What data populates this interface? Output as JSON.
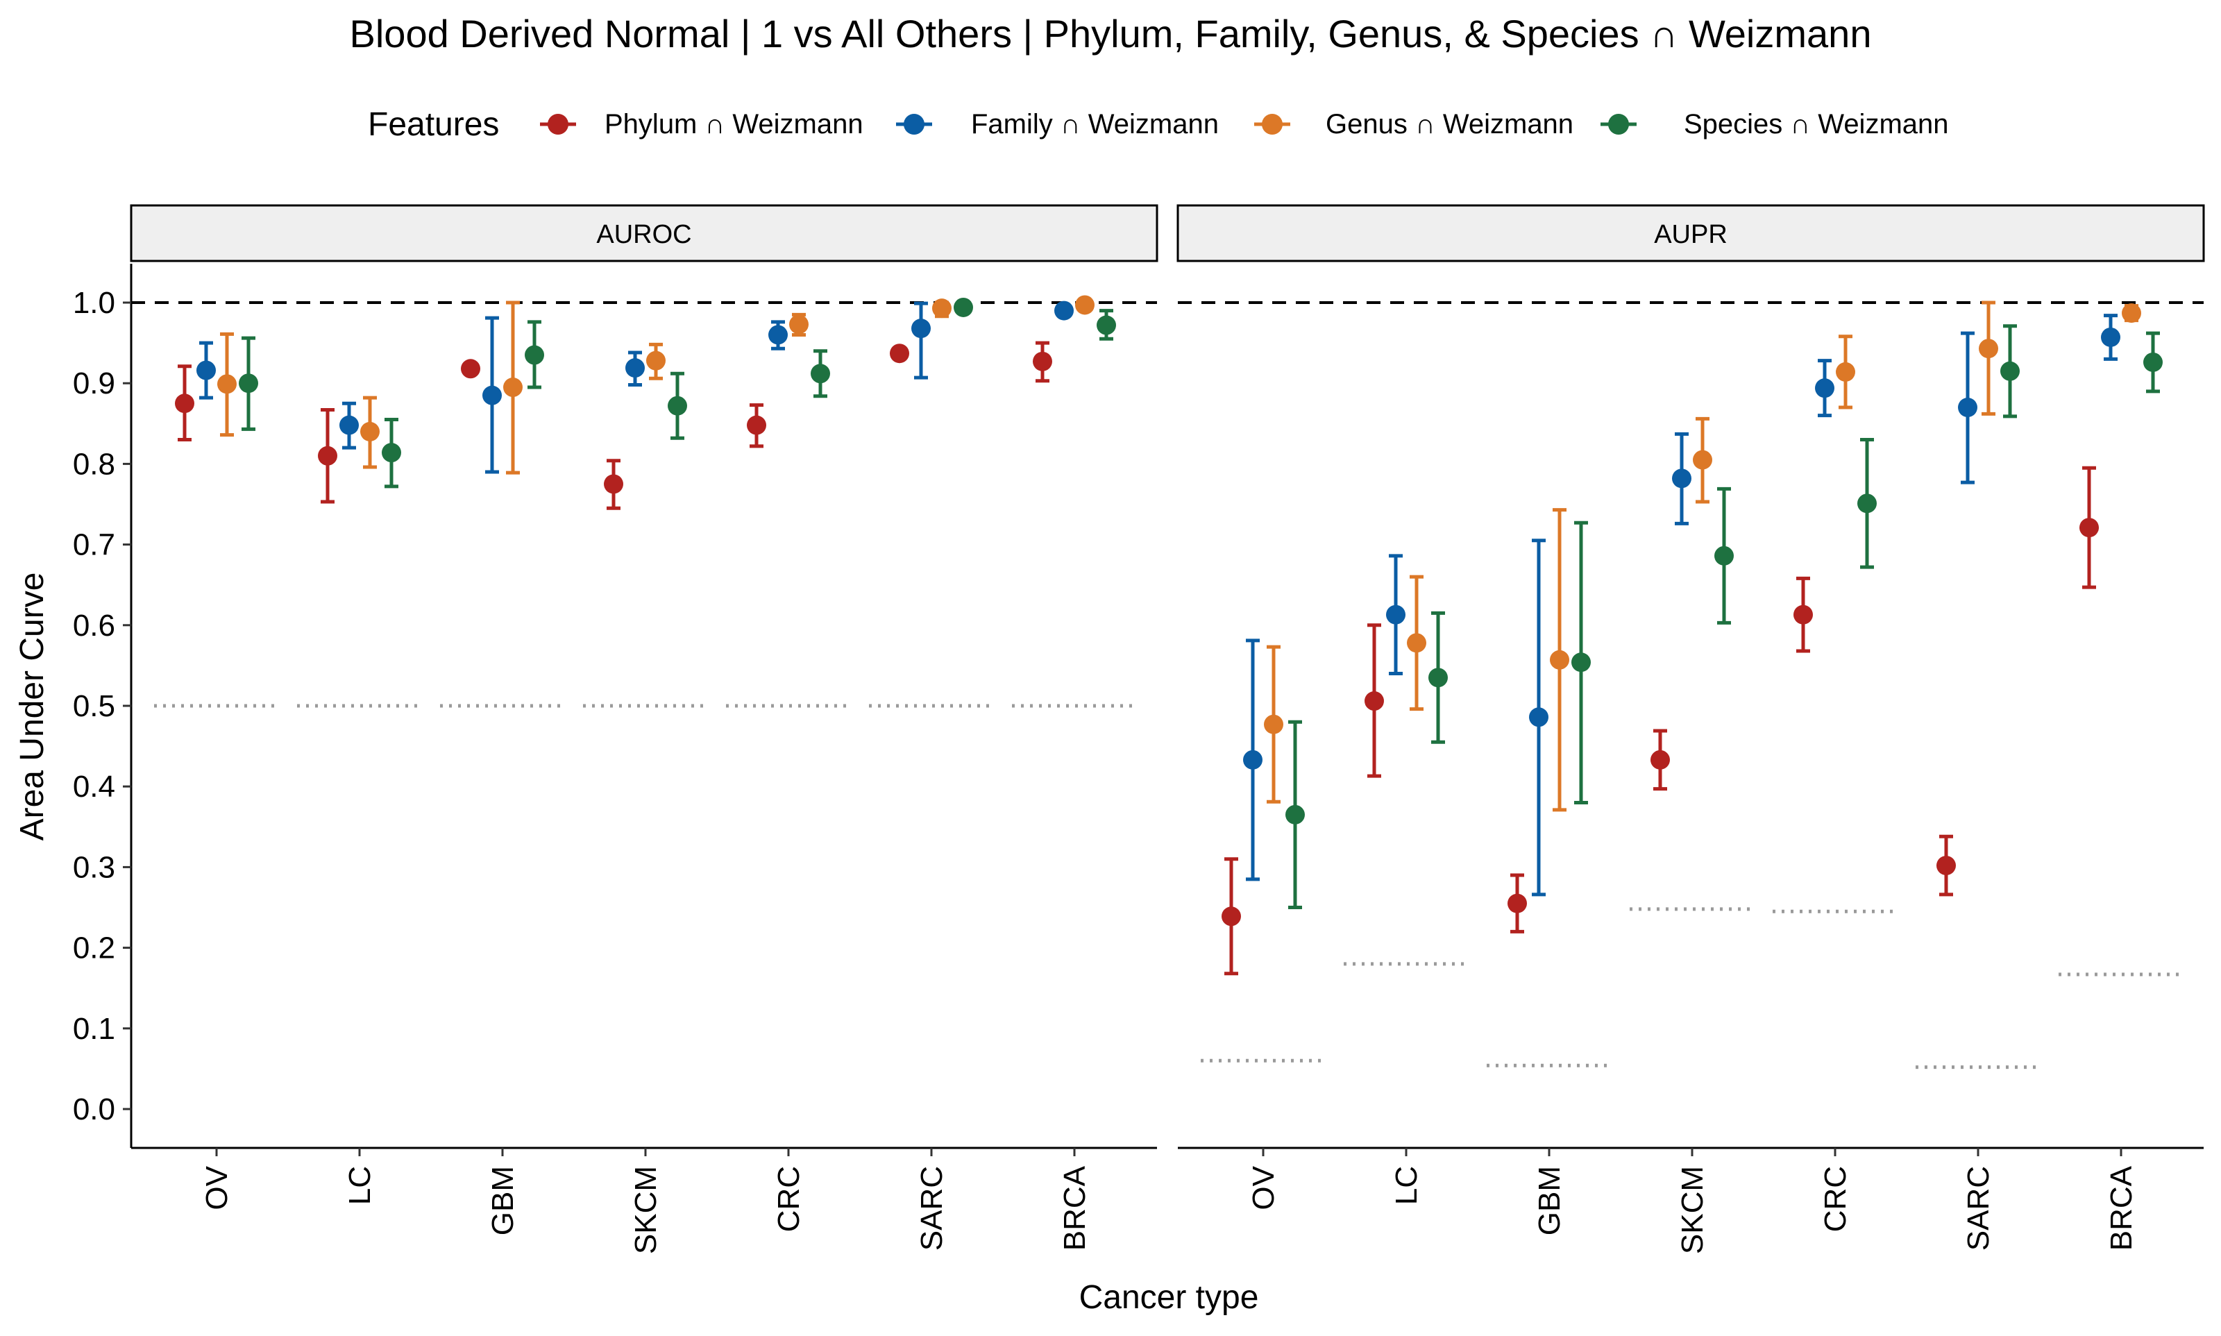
{
  "chart_data": {
    "type": "scatter",
    "title": "Blood Derived Normal | 1 vs All Others | Phylum, Family, Genus, & Species ∩ Weizmann",
    "xlabel": "Cancer type",
    "ylabel": "Area Under Curve",
    "ylim": [
      0,
      1
    ],
    "yticks": [
      "0.0",
      "0.1",
      "0.2",
      "0.3",
      "0.4",
      "0.5",
      "0.6",
      "0.7",
      "0.8",
      "0.9",
      "1.0"
    ],
    "categories": [
      "OV",
      "LC",
      "GBM",
      "SKCM",
      "CRC",
      "SARC",
      "BRCA"
    ],
    "legend": {
      "title": "Features",
      "position": "top",
      "entries": [
        {
          "label": "Phylum ∩ Weizmann",
          "color": "#B2221F"
        },
        {
          "label": "Family ∩ Weizmann",
          "color": "#0B5DA4"
        },
        {
          "label": "Genus ∩ Weizmann",
          "color": "#DC7827"
        },
        {
          "label": "Species ∩ Weizmann",
          "color": "#1E7140"
        }
      ]
    },
    "reference_line": 1.0,
    "grid": false,
    "panels": [
      {
        "label": "AUROC",
        "baseline": [
          0.5,
          0.5,
          0.5,
          0.5,
          0.5,
          0.5,
          0.5
        ],
        "series": [
          {
            "value": [
              0.875,
              0.81,
              0.918,
              0.775,
              0.848,
              0.937,
              0.927
            ],
            "low": [
              0.83,
              0.753,
              0.912,
              0.745,
              0.822,
              0.932,
              0.903
            ],
            "high": [
              0.921,
              0.867,
              0.924,
              0.804,
              0.873,
              0.942,
              0.95
            ]
          },
          {
            "value": [
              0.916,
              0.848,
              0.885,
              0.919,
              0.96,
              0.968,
              0.99
            ],
            "low": [
              0.882,
              0.82,
              0.79,
              0.898,
              0.943,
              0.907,
              0.985
            ],
            "high": [
              0.95,
              0.875,
              0.981,
              0.938,
              0.976,
              0.999,
              0.995
            ]
          },
          {
            "value": [
              0.899,
              0.84,
              0.895,
              0.928,
              0.973,
              0.993,
              0.997
            ],
            "low": [
              0.836,
              0.796,
              0.789,
              0.906,
              0.96,
              0.983,
              0.993
            ],
            "high": [
              0.961,
              0.882,
              1.0,
              0.948,
              0.985,
              1.0,
              1.0
            ]
          },
          {
            "value": [
              0.9,
              0.814,
              0.935,
              0.872,
              0.912,
              0.994,
              0.972
            ],
            "low": [
              0.843,
              0.772,
              0.895,
              0.832,
              0.884,
              0.988,
              0.955
            ],
            "high": [
              0.956,
              0.855,
              0.976,
              0.912,
              0.94,
              1.0,
              0.99
            ]
          }
        ]
      },
      {
        "label": "AUPR",
        "baseline": [
          0.06,
          0.18,
          0.054,
          0.248,
          0.245,
          0.052,
          0.167
        ],
        "series": [
          {
            "value": [
              0.239,
              0.506,
              0.255,
              0.433,
              0.613,
              0.302,
              0.721
            ],
            "low": [
              0.168,
              0.413,
              0.22,
              0.397,
              0.568,
              0.266,
              0.647
            ],
            "high": [
              0.31,
              0.6,
              0.29,
              0.469,
              0.658,
              0.338,
              0.795
            ]
          },
          {
            "value": [
              0.433,
              0.613,
              0.486,
              0.782,
              0.894,
              0.87,
              0.957
            ],
            "low": [
              0.285,
              0.54,
              0.266,
              0.726,
              0.86,
              0.777,
              0.93
            ],
            "high": [
              0.581,
              0.686,
              0.705,
              0.837,
              0.928,
              0.962,
              0.984
            ]
          },
          {
            "value": [
              0.477,
              0.578,
              0.557,
              0.805,
              0.914,
              0.943,
              0.987
            ],
            "low": [
              0.381,
              0.496,
              0.371,
              0.753,
              0.87,
              0.862,
              0.978
            ],
            "high": [
              0.573,
              0.66,
              0.743,
              0.856,
              0.958,
              1.0,
              0.996
            ]
          },
          {
            "value": [
              0.365,
              0.535,
              0.554,
              0.686,
              0.751,
              0.915,
              0.926
            ],
            "low": [
              0.25,
              0.455,
              0.38,
              0.603,
              0.672,
              0.859,
              0.89
            ],
            "high": [
              0.48,
              0.615,
              0.727,
              0.769,
              0.83,
              0.971,
              0.962
            ]
          }
        ]
      }
    ]
  }
}
